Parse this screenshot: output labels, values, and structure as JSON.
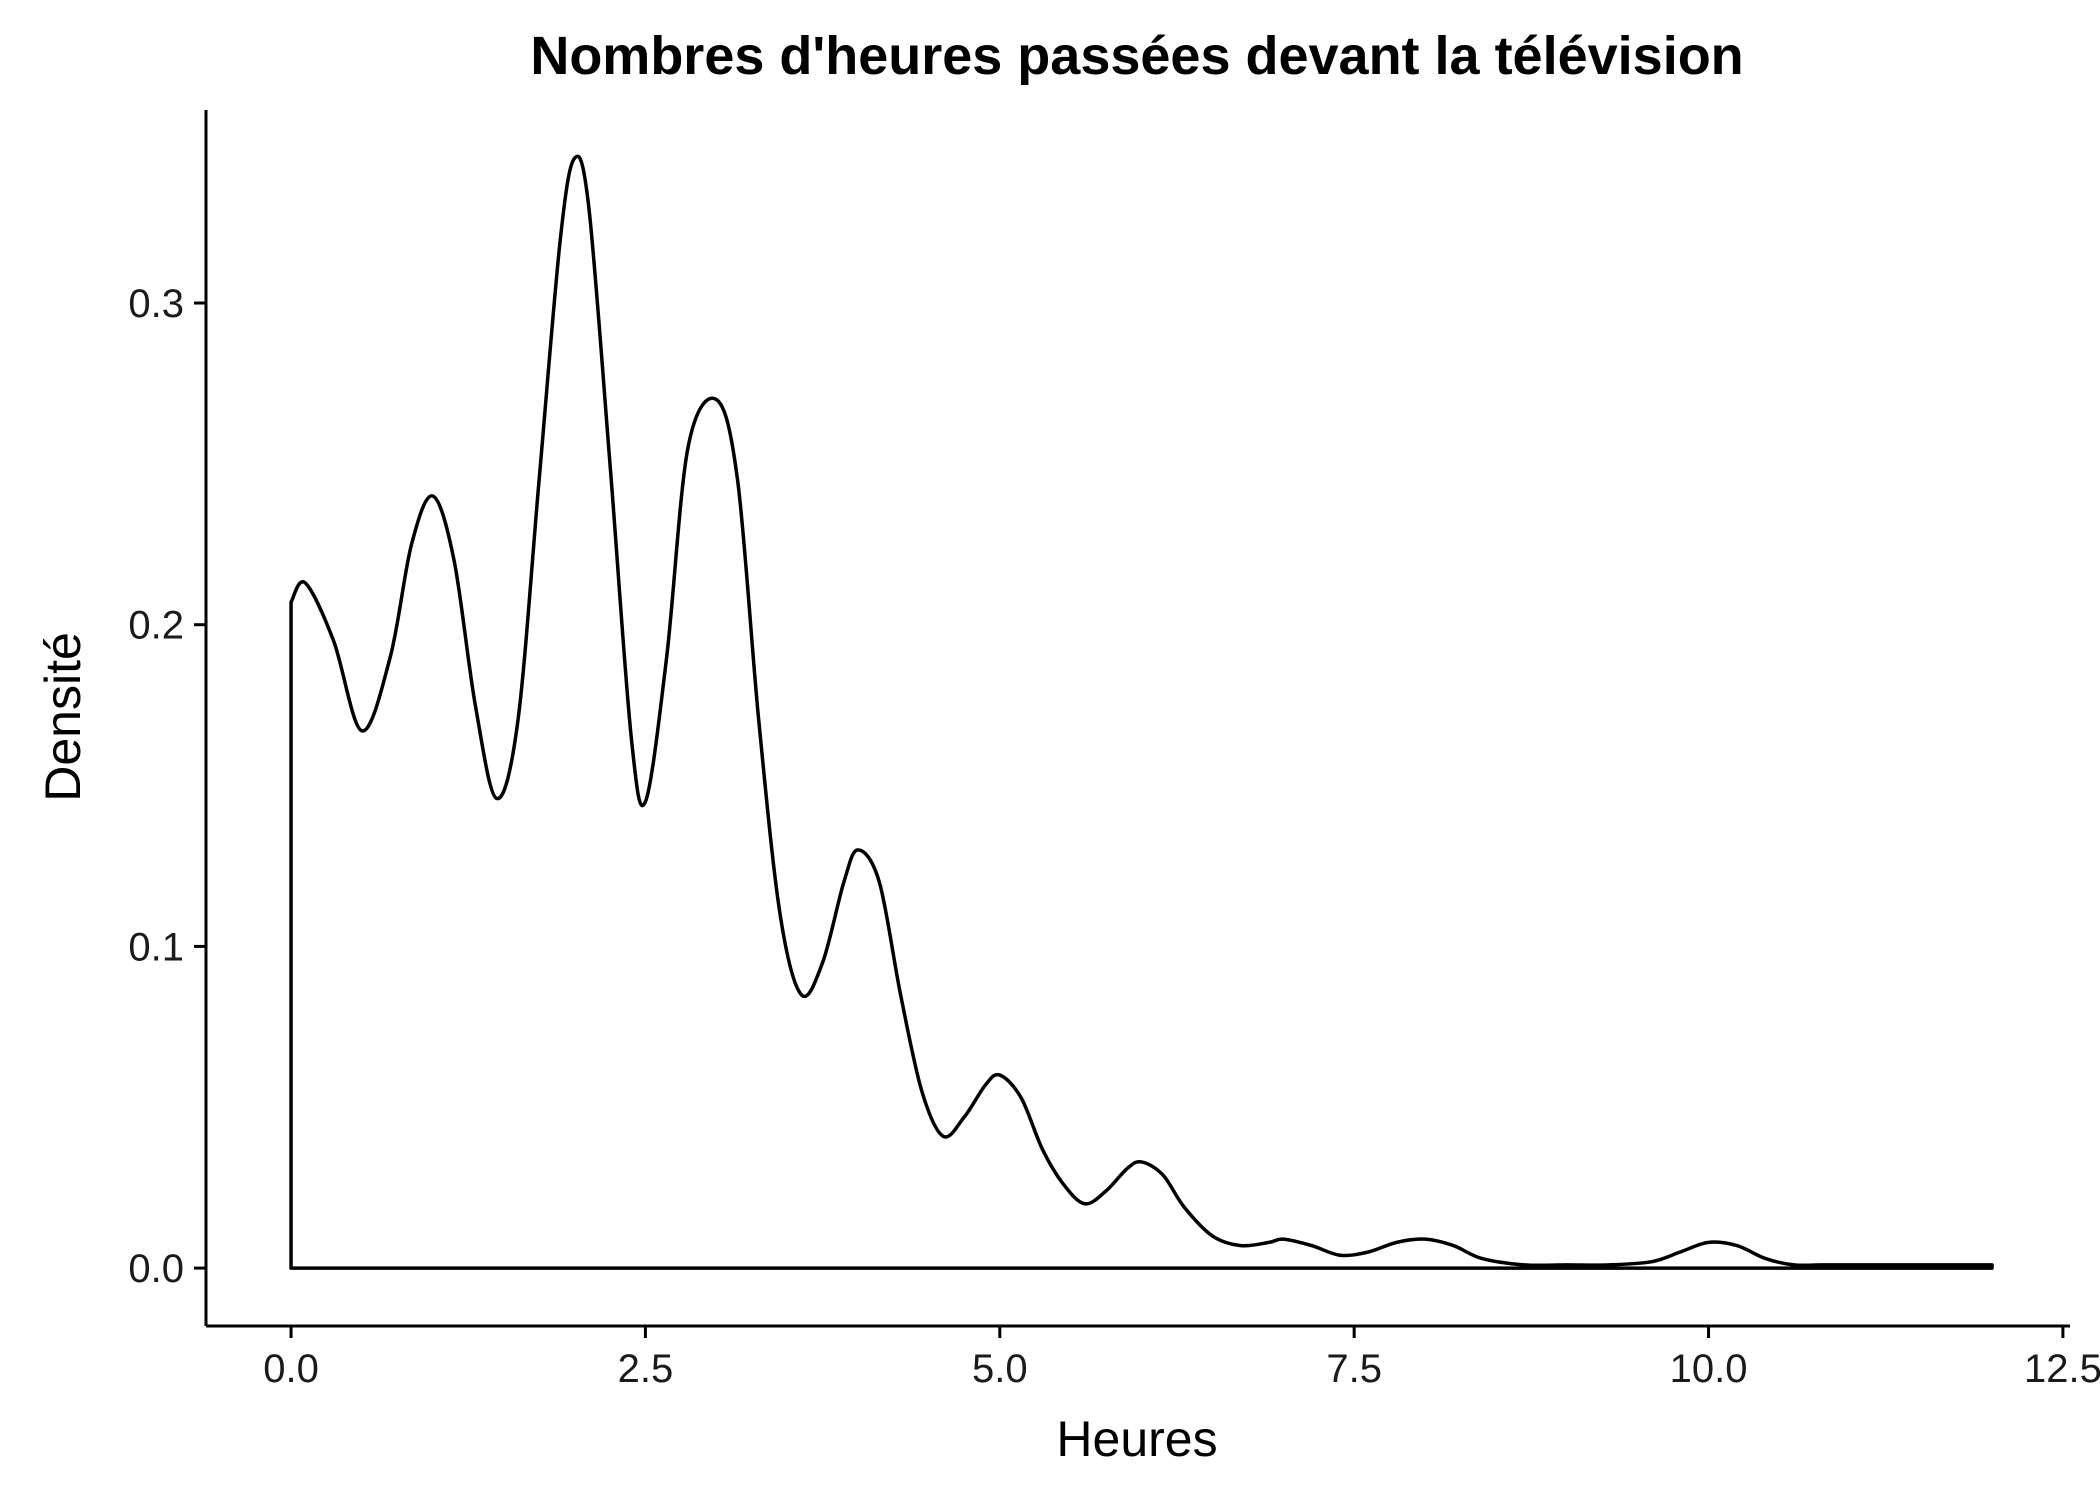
{
  "chart_data": {
    "type": "area",
    "title": "Nombres d'heures passées devant la télévision",
    "xlabel": "Heures",
    "ylabel": "Densité",
    "xlim": [
      -0.6,
      12.55
    ],
    "ylim": [
      -0.018,
      0.36
    ],
    "x_ticks": [
      0,
      2.5,
      5,
      7.5,
      10,
      12.5
    ],
    "x_tick_labels": [
      "0.0",
      "2.5",
      "5.0",
      "7.5",
      "10.0",
      "12.5"
    ],
    "y_ticks": [
      0,
      0.1,
      0.2,
      0.3
    ],
    "y_tick_labels": [
      "0.0",
      "0.1",
      "0.2",
      "0.3"
    ],
    "grid": false,
    "legend": "none",
    "line_color": "#000000",
    "series": [
      {
        "x": [
          0.0,
          0.1,
          0.3,
          0.5,
          0.7,
          0.85,
          1.0,
          1.15,
          1.3,
          1.45,
          1.6,
          1.75,
          1.9,
          2.0,
          2.1,
          2.25,
          2.4,
          2.5,
          2.65,
          2.8,
          3.0,
          3.15,
          3.3,
          3.45,
          3.6,
          3.75,
          3.9,
          4.0,
          4.15,
          4.3,
          4.45,
          4.6,
          4.75,
          4.9,
          5.0,
          5.15,
          5.3,
          5.45,
          5.6,
          5.75,
          5.9,
          6.0,
          6.15,
          6.3,
          6.5,
          6.7,
          6.9,
          7.0,
          7.2,
          7.4,
          7.6,
          7.8,
          8.0,
          8.2,
          8.4,
          8.7,
          9.0,
          9.3,
          9.6,
          9.8,
          10.0,
          10.2,
          10.4,
          10.6,
          10.8,
          11.0,
          11.3,
          11.6,
          12.0
        ],
        "y": [
          0.207,
          0.213,
          0.195,
          0.167,
          0.19,
          0.225,
          0.24,
          0.22,
          0.175,
          0.146,
          0.17,
          0.245,
          0.32,
          0.345,
          0.33,
          0.25,
          0.165,
          0.145,
          0.19,
          0.255,
          0.27,
          0.245,
          0.17,
          0.11,
          0.085,
          0.095,
          0.12,
          0.13,
          0.12,
          0.085,
          0.055,
          0.041,
          0.047,
          0.057,
          0.06,
          0.053,
          0.037,
          0.026,
          0.02,
          0.024,
          0.031,
          0.033,
          0.029,
          0.019,
          0.01,
          0.007,
          0.008,
          0.009,
          0.007,
          0.004,
          0.005,
          0.008,
          0.009,
          0.007,
          0.003,
          0.001,
          0.001,
          0.001,
          0.002,
          0.005,
          0.008,
          0.007,
          0.003,
          0.001,
          0.001,
          0.001,
          0.001,
          0.001,
          0.001
        ]
      }
    ]
  }
}
